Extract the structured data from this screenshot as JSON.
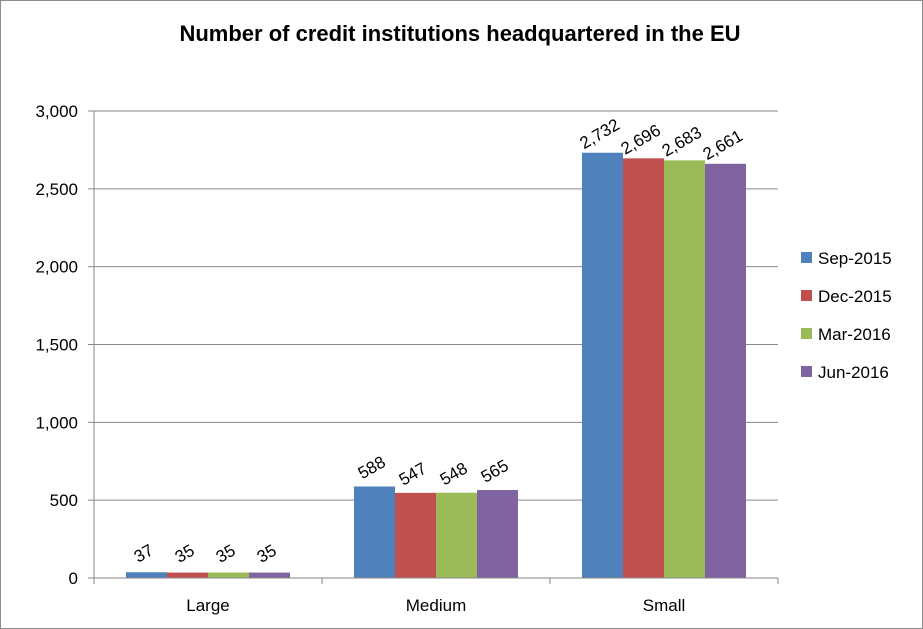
{
  "chart_data": {
    "type": "bar",
    "title": "Number of credit institutions headquartered in the EU",
    "categories": [
      "Large",
      "Medium",
      "Small"
    ],
    "series": [
      {
        "name": "Sep-2015",
        "color": "#4f81bd",
        "values": [
          37,
          588,
          2732
        ],
        "labels": [
          "37",
          "588",
          "2,732"
        ]
      },
      {
        "name": "Dec-2015",
        "color": "#c0504d",
        "values": [
          35,
          547,
          2696
        ],
        "labels": [
          "35",
          "547",
          "2,696"
        ]
      },
      {
        "name": "Mar-2016",
        "color": "#9bbb59",
        "values": [
          35,
          548,
          2683
        ],
        "labels": [
          "35",
          "548",
          "2,683"
        ]
      },
      {
        "name": "Jun-2016",
        "color": "#8064a2",
        "values": [
          35,
          565,
          2661
        ],
        "labels": [
          "35",
          "565",
          "2,661"
        ]
      }
    ],
    "ylim": [
      0,
      3000
    ],
    "yticks": [
      0,
      500,
      1000,
      1500,
      2000,
      2500,
      3000
    ],
    "ytick_labels": [
      "0",
      "500",
      "1,000",
      "1,500",
      "2,000",
      "2,500",
      "3,000"
    ],
    "grid": true,
    "legend": "right"
  }
}
